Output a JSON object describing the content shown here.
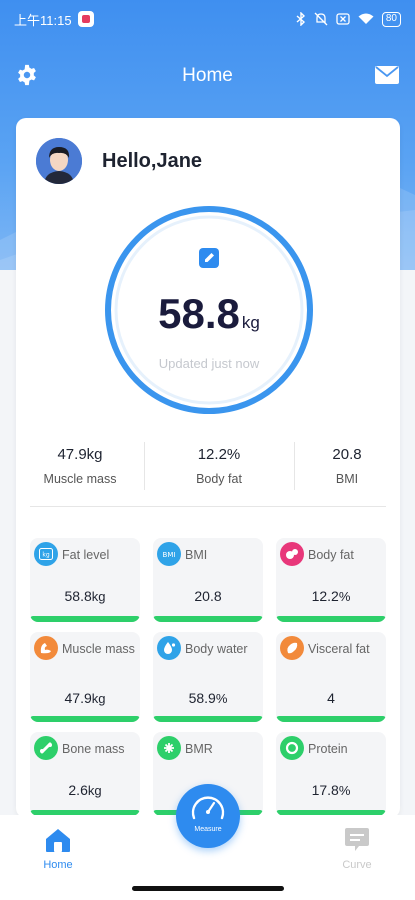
{
  "status_bar": {
    "time": "上午11:15",
    "battery": "80"
  },
  "header": {
    "title": "Home"
  },
  "greeting": "Hello,Jane",
  "weight": {
    "value": "58.8",
    "unit": "kg",
    "updated": "Updated just now"
  },
  "stats": [
    {
      "value": "47.9kg",
      "label": "Muscle mass"
    },
    {
      "value": "12.2%",
      "label": "Body fat"
    },
    {
      "value": "20.8",
      "label": "BMI"
    }
  ],
  "tiles": [
    {
      "name": "Fat level",
      "value": "58.8",
      "unit": "kg",
      "icon": "kg-icon",
      "color": "#2fa3e8"
    },
    {
      "name": "BMI",
      "value": "20.8",
      "unit": "",
      "icon": "bmi-icon",
      "color": "#2fa3e8"
    },
    {
      "name": "Body fat",
      "value": "12.2",
      "unit": "%",
      "icon": "body-fat-icon",
      "color": "#e8377a"
    },
    {
      "name": "Muscle mass",
      "value": "47.9",
      "unit": "kg",
      "icon": "muscle-icon",
      "color": "#f28a3b"
    },
    {
      "name": "Body water",
      "value": "58.9",
      "unit": "%",
      "icon": "water-drop-icon",
      "color": "#2fa3e8"
    },
    {
      "name": "Visceral fat",
      "value": "4",
      "unit": "",
      "icon": "visceral-fat-icon",
      "color": "#f28a3b"
    },
    {
      "name": "Bone mass",
      "value": "2.6",
      "unit": "kg",
      "icon": "bone-icon",
      "color": "#2dcf6a"
    },
    {
      "name": "BMR",
      "value": "",
      "unit": "",
      "icon": "bmr-icon",
      "color": "#2dcf6a"
    },
    {
      "name": "Protein",
      "value": "17.8",
      "unit": "%",
      "icon": "protein-icon",
      "color": "#2dcf6a"
    }
  ],
  "nav": {
    "home": "Home",
    "measure": "Measure",
    "curve": "Curve"
  },
  "colors": {
    "accent": "#2e8bef",
    "good": "#2dcf6a"
  }
}
